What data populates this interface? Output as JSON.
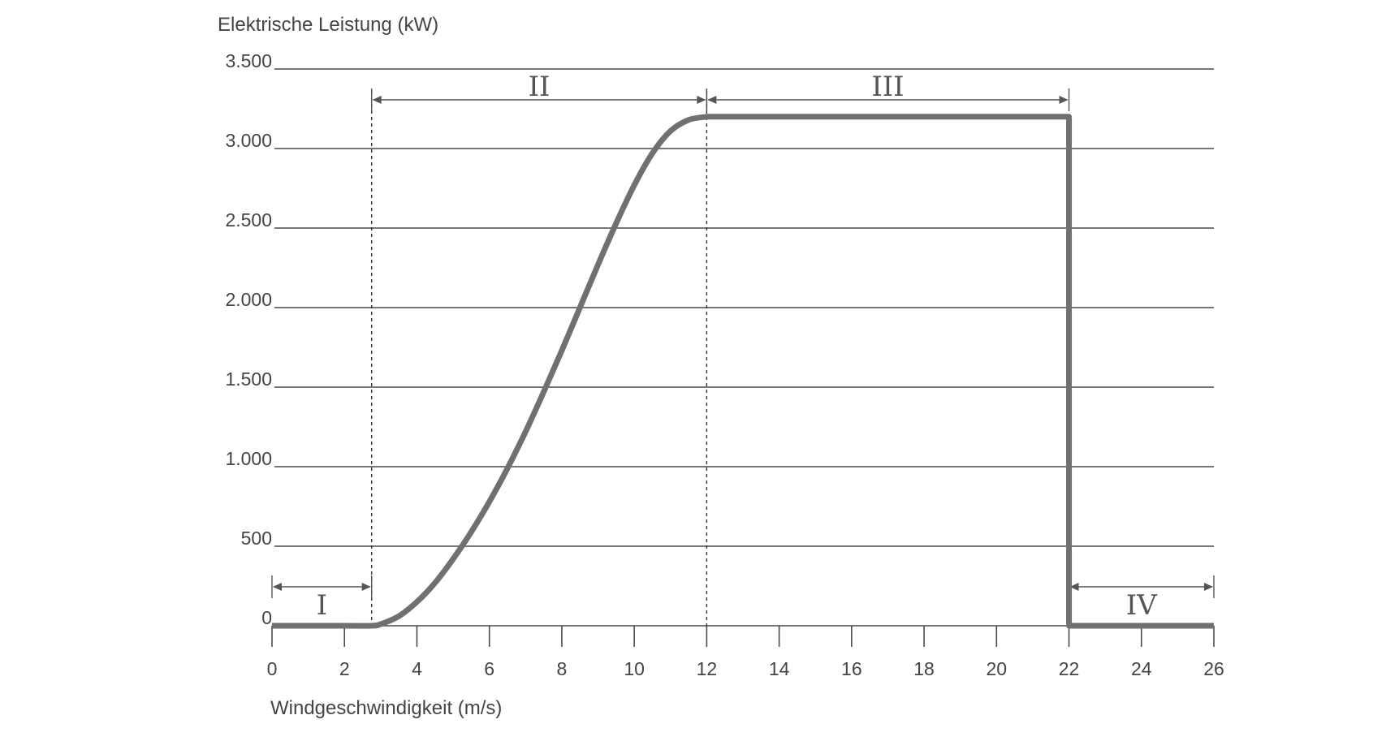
{
  "chart_data": {
    "type": "line",
    "title": "",
    "ylabel": "Elektrische Leistung (kW)",
    "xlabel": "Windgeschwindigkeit (m/s)",
    "xlim": [
      0,
      26
    ],
    "ylim": [
      0,
      3500
    ],
    "x_ticks": [
      0,
      2,
      4,
      6,
      8,
      10,
      12,
      14,
      16,
      18,
      20,
      22,
      24,
      26
    ],
    "x_tick_labels": [
      "0",
      "2",
      "4",
      "6",
      "8",
      "10",
      "12",
      "14",
      "16",
      "18",
      "20",
      "22",
      "24",
      "26"
    ],
    "y_ticks": [
      0,
      500,
      1000,
      1500,
      2000,
      2500,
      3000,
      3500
    ],
    "y_tick_labels": [
      "0",
      "500",
      "1.000",
      "1.500",
      "2.000",
      "2.500",
      "3.000",
      "3.500"
    ],
    "grid": "horizontal",
    "series": [
      {
        "x": [
          0,
          2,
          2.75,
          3,
          3.5,
          4,
          4.5,
          5,
          5.5,
          6,
          6.5,
          7,
          7.5,
          8,
          8.5,
          9,
          9.5,
          10,
          10.5,
          11,
          11.5,
          12,
          22,
          22,
          26
        ],
        "y": [
          0,
          0,
          0,
          10,
          60,
          150,
          270,
          420,
          590,
          780,
          990,
          1220,
          1470,
          1730,
          2000,
          2270,
          2530,
          2770,
          2970,
          3110,
          3180,
          3200,
          3200,
          0,
          0
        ]
      }
    ],
    "regions": [
      {
        "label": "I",
        "x_start": 0,
        "x_end": 2.75
      },
      {
        "label": "II",
        "x_start": 2.75,
        "x_end": 12
      },
      {
        "label": "III",
        "x_start": 12,
        "x_end": 22
      },
      {
        "label": "IV",
        "x_start": 22,
        "x_end": 26
      }
    ],
    "dashed_boundaries_x": [
      2.75,
      12
    ]
  }
}
